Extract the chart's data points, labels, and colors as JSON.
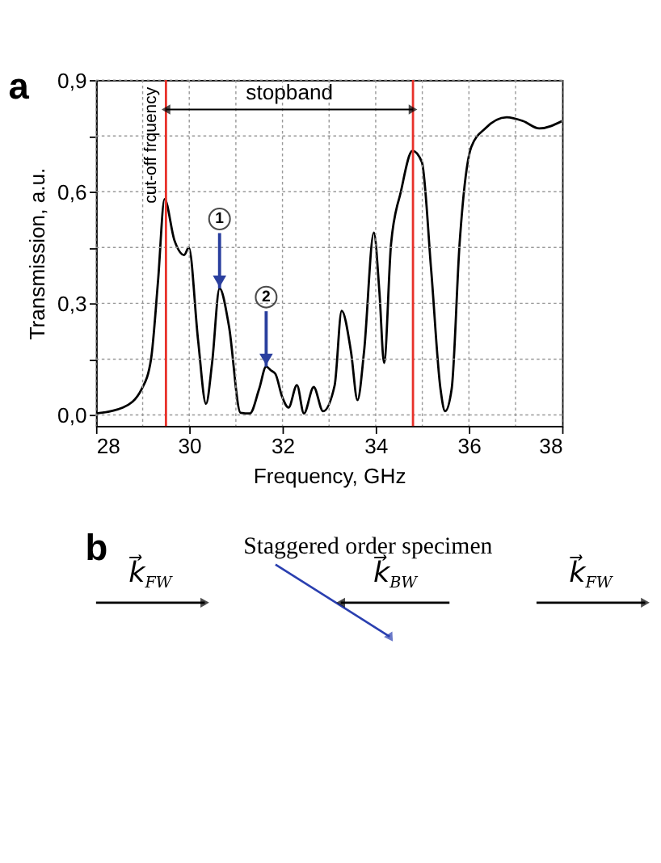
{
  "chart_data": [
    {
      "type": "line",
      "xlabel": "Frequency, GHz",
      "ylabel": "Transmission, a.u.",
      "x": [
        28,
        28.58,
        28.98,
        29.18,
        29.33,
        29.47,
        29.68,
        29.89,
        29.99,
        30.19,
        30.36,
        30.49,
        30.65,
        30.85,
        31.1,
        31.3,
        31.5,
        31.65,
        31.75,
        31.85,
        31.99,
        32.13,
        32.31,
        32.46,
        32.67,
        32.87,
        33.12,
        33.27,
        33.47,
        33.61,
        33.75,
        33.96,
        34.08,
        34.18,
        34.33,
        34.54,
        34.79,
        34.99,
        35.19,
        35.39,
        35.49,
        35.63,
        35.8,
        36.05,
        36.35,
        36.81,
        37.16,
        37.51,
        38
      ],
      "series": [
        {
          "color": "#000000",
          "values": [
            0.004,
            0.02,
            0.07,
            0.15,
            0.36,
            0.58,
            0.47,
            0.43,
            0.45,
            0.2,
            0.03,
            0.14,
            0.34,
            0.24,
            0.006,
            0.004,
            0.07,
            0.13,
            0.12,
            0.11,
            0.05,
            0.02,
            0.08,
            0.004,
            0.075,
            0.01,
            0.08,
            0.28,
            0.17,
            0.04,
            0.17,
            0.49,
            0.33,
            0.14,
            0.46,
            0.6,
            0.71,
            0.68,
            0.39,
            0.07,
            0.01,
            0.07,
            0.46,
            0.72,
            0.77,
            0.8,
            0.79,
            0.77,
            0.79
          ]
        }
      ],
      "xlim": [
        28,
        38
      ],
      "xticks": [
        28,
        {
          "value": 29,
          "label": null
        },
        30,
        {
          "value": 31,
          "label": null
        },
        32,
        {
          "value": 33,
          "label": null
        },
        34,
        {
          "value": 35,
          "label": null
        },
        36,
        {
          "value": 37,
          "label": null
        },
        38
      ],
      "ylim": [
        -0.03,
        0.9
      ],
      "yticks": [
        {
          "value": 0,
          "label": "0,0"
        },
        {
          "value": 0.15,
          "label": null
        },
        {
          "value": 0.3,
          "label": "0,3"
        },
        {
          "value": 0.45,
          "label": null
        },
        {
          "value": 0.6,
          "label": "0,6"
        },
        {
          "value": 0.75,
          "label": null
        },
        {
          "value": 0.9,
          "label": "0,9"
        }
      ],
      "grid": true,
      "marker": "none",
      "line_style": "solid",
      "ref_lines": [
        {
          "axis": "x",
          "value": 29.5,
          "label": "cut-off frquency",
          "color": "#e8312a"
        },
        {
          "axis": "x",
          "value": 34.8,
          "label": null,
          "color": "#e8312a"
        }
      ],
      "annotations": [
        "a",
        "stopband",
        {
          "text": "1",
          "x": 30.65,
          "y": 0.34
        },
        {
          "text": "2",
          "x": 31.65,
          "y": 0.13
        }
      ]
    },
    {
      "type": "other",
      "annotations": [
        "b",
        "Staggered order specimen",
        "k⃗$_{FW}$",
        "k⃗$_{BW}$",
        "k⃗$_{FW}$"
      ]
    }
  ]
}
